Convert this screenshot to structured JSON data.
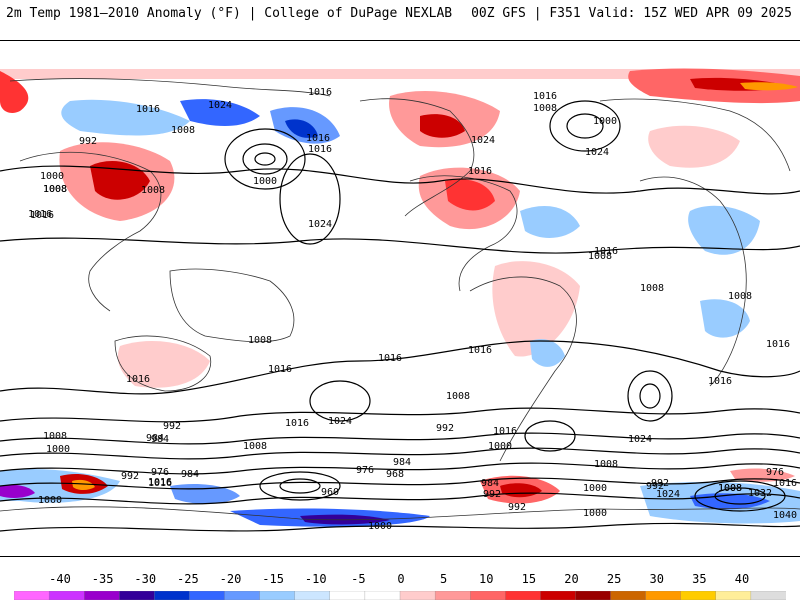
{
  "header": {
    "title_left": "2m Temp 1981–2010 Anomaly (°F) | College of DuPage NEXLAB",
    "title_right": "00Z GFS | F351 Valid: 15Z WED APR 09 2025"
  },
  "map": {
    "projection": "global-cylindrical",
    "field": "2m temperature anomaly shaded, mean sea level pressure contours",
    "isobar_labels": [
      "1016",
      "1024",
      "1016",
      "1008",
      "1000",
      "1024",
      "1016",
      "1016",
      "1024",
      "1008",
      "1016",
      "1000",
      "1024",
      "1016",
      "1016",
      "1008",
      "1000",
      "992",
      "1016",
      "1008",
      "1008",
      "1008",
      "1008",
      "1016",
      "1008",
      "1016",
      "1016",
      "1016",
      "1016",
      "1016",
      "1008",
      "1016",
      "1008",
      "1016",
      "1024",
      "1024",
      "1008",
      "1000",
      "1008",
      "992",
      "984",
      "1008",
      "1016",
      "992",
      "984",
      "1000",
      "1016",
      "976",
      "984",
      "992",
      "1016",
      "1000",
      "960",
      "968",
      "976",
      "984",
      "992",
      "1000",
      "1008",
      "992",
      "984",
      "1000",
      "1024",
      "1008",
      "1032",
      "1016",
      "1040",
      "1000",
      "992",
      "992",
      "976"
    ]
  },
  "colorbar": {
    "labels": [
      "-40",
      "-35",
      "-30",
      "-25",
      "-20",
      "-15",
      "-10",
      "-5",
      "0",
      "5",
      "10",
      "15",
      "20",
      "25",
      "30",
      "35",
      "40"
    ],
    "colors": [
      "#ff66ff",
      "#cc33ff",
      "#9900cc",
      "#330099",
      "#0033cc",
      "#3366ff",
      "#6699ff",
      "#99ccff",
      "#cce6ff",
      "#ffffff",
      "#ffffff",
      "#ffcccc",
      "#ff9999",
      "#ff6666",
      "#ff3333",
      "#cc0000",
      "#990000",
      "#cc6600",
      "#ff9900",
      "#ffcc00",
      "#ffee99",
      "#dddddd"
    ]
  }
}
